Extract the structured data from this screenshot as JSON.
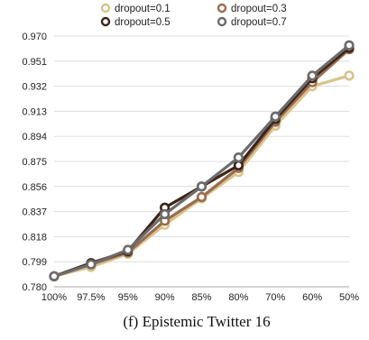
{
  "chart_data": {
    "type": "line",
    "caption": "(f) Epistemic Twitter 16",
    "x_labels": [
      "100%",
      "97.5%",
      "95%",
      "90%",
      "85%",
      "80%",
      "70%",
      "60%",
      "50%"
    ],
    "y_ticks": [
      "0.780",
      "0.799",
      "0.818",
      "0.837",
      "0.856",
      "0.875",
      "0.894",
      "0.913",
      "0.932",
      "0.951",
      "0.970"
    ],
    "ylim": [
      0.78,
      0.97
    ],
    "grid": "horizontal",
    "legend_position": "top",
    "series": [
      {
        "name": "dropout=0.1",
        "color": "#d8c38e",
        "values": [
          0.788,
          0.795,
          0.805,
          0.827,
          0.847,
          0.867,
          0.902,
          0.932,
          0.94
        ]
      },
      {
        "name": "dropout=0.3",
        "color": "#9a6d4d",
        "values": [
          0.788,
          0.797,
          0.806,
          0.83,
          0.848,
          0.87,
          0.905,
          0.935,
          0.96
        ]
      },
      {
        "name": "dropout=0.5",
        "color": "#3d2418",
        "values": [
          0.788,
          0.798,
          0.807,
          0.84,
          0.856,
          0.872,
          0.907,
          0.938,
          0.961
        ]
      },
      {
        "name": "dropout=0.7",
        "color": "#6b6b6b",
        "values": [
          0.788,
          0.797,
          0.808,
          0.835,
          0.856,
          0.878,
          0.909,
          0.94,
          0.963
        ]
      }
    ]
  }
}
